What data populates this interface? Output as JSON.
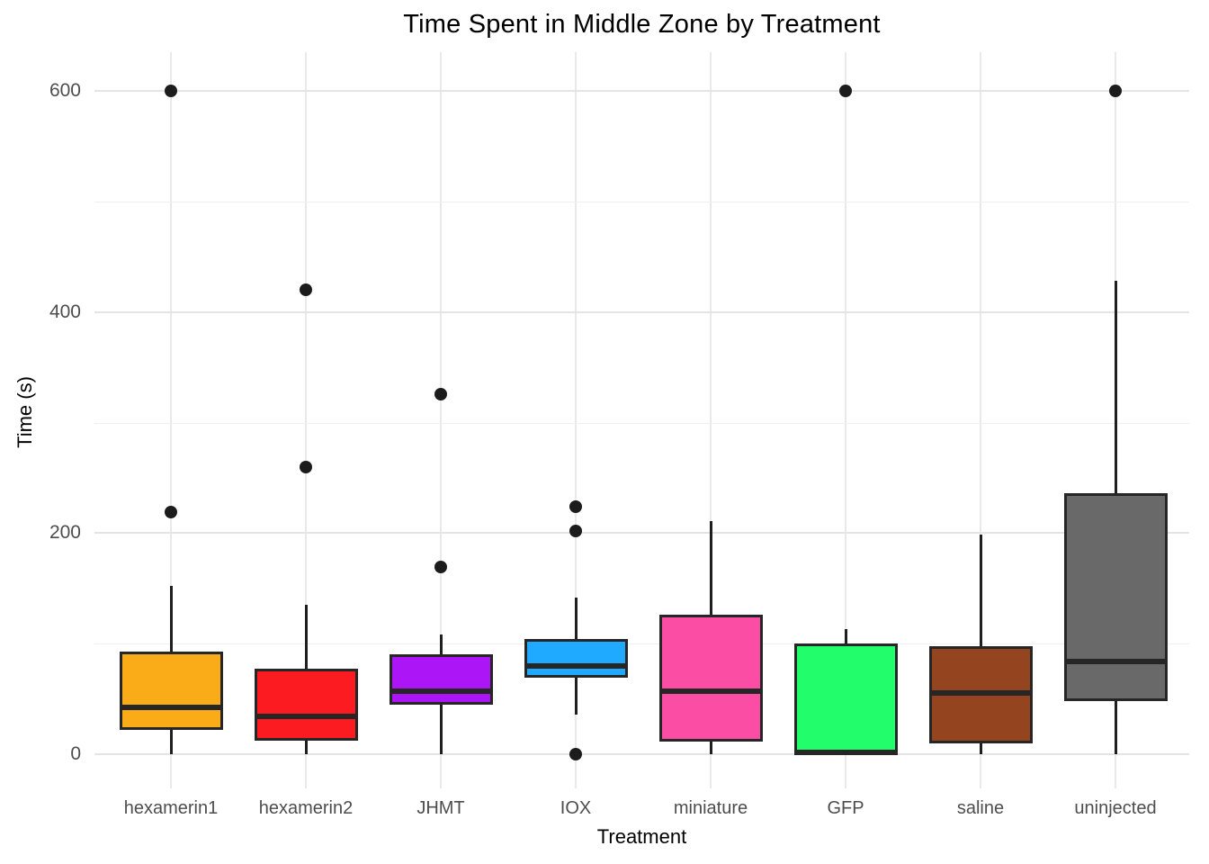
{
  "chart_data": {
    "type": "boxplot",
    "title": "Time Spent in Middle Zone by Treatment",
    "xlabel": "Treatment",
    "ylabel": "Time (s)",
    "y_axis": {
      "tick_values": [
        0,
        200,
        400,
        600
      ],
      "minor_gridlines": [
        100,
        300,
        500
      ],
      "range": [
        0,
        633
      ]
    },
    "grid": "on",
    "legend": "none",
    "categories": [
      "hexamerin1",
      "hexamerin2",
      "JHMT",
      "IOX",
      "miniature",
      "GFP",
      "saline",
      "uninjected"
    ],
    "groups": [
      {
        "label": "hexamerin1",
        "color": "#FAAB18",
        "whisker_low": 0,
        "q1": 22,
        "median": 42,
        "q3": 93,
        "whisker_high": 152,
        "outliers": [
          219,
          600
        ]
      },
      {
        "label": "hexamerin2",
        "color": "#FB1B21",
        "whisker_low": 0,
        "q1": 12,
        "median": 34,
        "q3": 77,
        "whisker_high": 135,
        "outliers": [
          260,
          420
        ]
      },
      {
        "label": "JHMT",
        "color": "#AC16F7",
        "whisker_low": 0,
        "q1": 45,
        "median": 57,
        "q3": 90,
        "whisker_high": 108,
        "outliers": [
          169,
          326
        ]
      },
      {
        "label": "IOX",
        "color": "#1FAAFF",
        "whisker_low": 36,
        "q1": 69,
        "median": 80,
        "q3": 104,
        "whisker_high": 142,
        "outliers": [
          0,
          202,
          224
        ]
      },
      {
        "label": "miniature",
        "color": "#FB4DA4",
        "whisker_low": 0,
        "q1": 11,
        "median": 57,
        "q3": 126,
        "whisker_high": 211,
        "outliers": []
      },
      {
        "label": "GFP",
        "color": "#22FD6C",
        "whisker_low": 0,
        "q1": 0,
        "median": 2,
        "q3": 100,
        "whisker_high": 113,
        "outliers": [
          600
        ]
      },
      {
        "label": "saline",
        "color": "#94441F",
        "whisker_low": 0,
        "q1": 10,
        "median": 55,
        "q3": 98,
        "whisker_high": 199,
        "outliers": []
      },
      {
        "label": "uninjected",
        "color": "#696969",
        "whisker_low": 0,
        "q1": 48,
        "median": 84,
        "q3": 236,
        "whisker_high": 428,
        "outliers": [
          600
        ]
      }
    ]
  }
}
